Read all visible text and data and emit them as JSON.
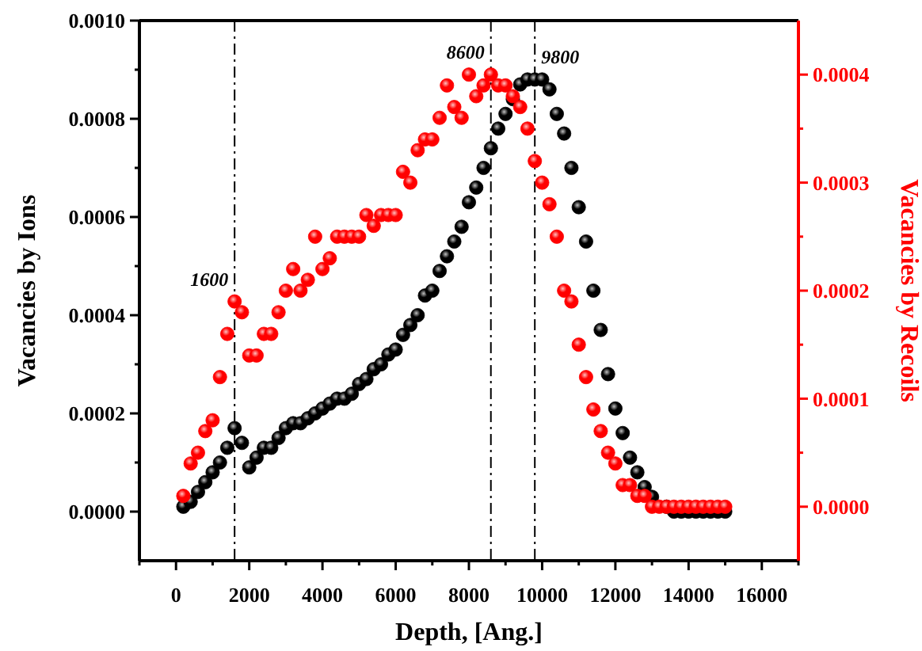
{
  "chart_data": {
    "type": "scatter",
    "xlabel": "Depth, [Ang.]",
    "ylabel": "Vacancies by Ions",
    "y2label": "Vacancies by Recoils",
    "x": [
      200,
      400,
      600,
      800,
      1000,
      1200,
      1400,
      1600,
      1800,
      2000,
      2200,
      2400,
      2600,
      2800,
      3000,
      3200,
      3400,
      3600,
      3800,
      4000,
      4200,
      4400,
      4600,
      4800,
      5000,
      5200,
      5400,
      5600,
      5800,
      6000,
      6200,
      6400,
      6600,
      6800,
      7000,
      7200,
      7400,
      7600,
      7800,
      8000,
      8200,
      8400,
      8600,
      8800,
      9000,
      9200,
      9400,
      9600,
      9800,
      10000,
      10200,
      10400,
      10600,
      10800,
      11000,
      11200,
      11400,
      11600,
      11800,
      12000,
      12200,
      12400,
      12600,
      12800,
      13000,
      13200,
      13400,
      13600,
      13800,
      14000,
      14200,
      14400,
      14600,
      14800,
      15000
    ],
    "series": [
      {
        "color": "#000000",
        "values": [
          1e-05,
          2e-05,
          4e-05,
          6e-05,
          8e-05,
          0.0001,
          0.00013,
          0.00017,
          0.00014,
          9e-05,
          0.00011,
          0.00013,
          0.00013,
          0.00015,
          0.00017,
          0.00018,
          0.00018,
          0.00019,
          0.0002,
          0.00021,
          0.00022,
          0.00023,
          0.00023,
          0.00024,
          0.00026,
          0.00027,
          0.00029,
          0.0003,
          0.00032,
          0.00033,
          0.00036,
          0.00038,
          0.0004,
          0.00044,
          0.00045,
          0.00049,
          0.00052,
          0.00055,
          0.00058,
          0.00063,
          0.00066,
          0.0007,
          0.00074,
          0.00078,
          0.00081,
          0.00084,
          0.00087,
          0.00088,
          0.00088,
          0.00088,
          0.00086,
          0.00081,
          0.00077,
          0.0007,
          0.00062,
          0.00055,
          0.00045,
          0.00037,
          0.00028,
          0.00021,
          0.00016,
          0.00011,
          8e-05,
          5e-05,
          3e-05,
          null,
          1e-05,
          0,
          0,
          0,
          0,
          0,
          0,
          0,
          0
        ]
      },
      {
        "color": "#ff0000",
        "axis": "y2",
        "values": [
          1e-05,
          4e-05,
          5e-05,
          7e-05,
          8e-05,
          0.00012,
          0.00016,
          0.00019,
          0.00018,
          0.00014,
          0.00014,
          0.00016,
          0.00016,
          0.00018,
          0.0002,
          0.00022,
          0.0002,
          0.00021,
          0.00025,
          0.00022,
          0.00023,
          0.00025,
          0.00025,
          0.00025,
          0.00025,
          0.00027,
          0.00026,
          0.00027,
          0.00027,
          0.00027,
          0.00031,
          0.0003,
          0.00033,
          0.00034,
          0.00034,
          0.00036,
          0.00039,
          0.00037,
          0.00036,
          0.0004,
          0.00038,
          0.00039,
          0.0004,
          0.00039,
          0.00039,
          0.00038,
          0.00037,
          0.00035,
          0.00032,
          0.0003,
          0.00028,
          0.00025,
          0.0002,
          0.00019,
          0.00015,
          0.00012,
          9e-05,
          7e-05,
          5e-05,
          4e-05,
          2e-05,
          2e-05,
          1e-05,
          1e-05,
          0,
          0,
          0,
          0,
          0,
          0,
          0,
          0,
          0,
          0,
          0
        ]
      }
    ],
    "marker": "circle",
    "xlim": [
      -1000,
      17000
    ],
    "xticks": [
      {
        "value": -1000,
        "label": null
      },
      0,
      {
        "value": 1000,
        "label": null
      },
      2000,
      {
        "value": 3000,
        "label": null
      },
      4000,
      {
        "value": 5000,
        "label": null
      },
      6000,
      {
        "value": 7000,
        "label": null
      },
      8000,
      {
        "value": 9000,
        "label": null
      },
      10000,
      {
        "value": 11000,
        "label": null
      },
      12000,
      {
        "value": 13000,
        "label": null
      },
      14000,
      {
        "value": 15000,
        "label": null
      },
      16000,
      {
        "value": 17000,
        "label": null
      }
    ],
    "ylim": [
      -0.0001,
      0.001
    ],
    "yticks": [
      {
        "value": 0,
        "label": "0.0000"
      },
      {
        "value": 0.0001,
        "label": null
      },
      {
        "value": 0.0002,
        "label": "0.0002"
      },
      {
        "value": 0.0003,
        "label": null
      },
      {
        "value": 0.0004,
        "label": "0.0004"
      },
      {
        "value": 0.0005,
        "label": null
      },
      {
        "value": 0.0006,
        "label": "0.0006"
      },
      {
        "value": 0.0007,
        "label": null
      },
      {
        "value": 0.0008,
        "label": "0.0008"
      },
      {
        "value": 0.0009,
        "label": null
      },
      {
        "value": 0.001,
        "label": "0.0010"
      }
    ],
    "y2lim": [
      -5e-05,
      0.00045
    ],
    "y2ticks": [
      {
        "value": 0,
        "label": "0.0000"
      },
      {
        "value": 5e-05,
        "label": null
      },
      {
        "value": 0.0001,
        "label": "0.0001"
      },
      {
        "value": 0.00015,
        "label": null
      },
      {
        "value": 0.0002,
        "label": "0.0002"
      },
      {
        "value": 0.00025,
        "label": null
      },
      {
        "value": 0.0003,
        "label": "0.0003"
      },
      {
        "value": 0.00035,
        "label": null
      },
      {
        "value": 0.0004,
        "label": "0.0004"
      }
    ],
    "ref_lines": [
      {
        "axis": "x",
        "value": 1600,
        "label": "1600",
        "line_style": "dashdot"
      },
      {
        "axis": "x",
        "value": 8600,
        "label": "8600",
        "line_style": "dashdot"
      },
      {
        "axis": "x",
        "value": 9800,
        "label": "9800",
        "line_style": "dashdot"
      }
    ],
    "grid": false
  }
}
